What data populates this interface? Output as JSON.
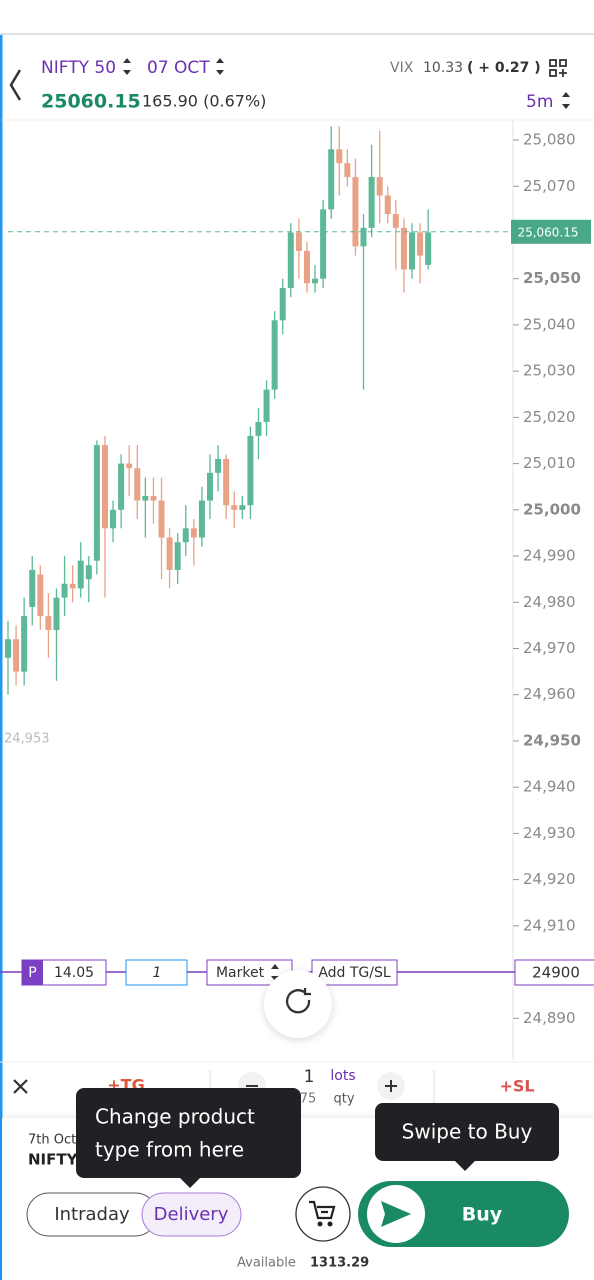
{
  "header": {
    "symbol": "NIFTY 50",
    "expiry": "07 OCT",
    "vix_label": "VIX",
    "vix_value": "10.33",
    "vix_change": "( + 0.27 )",
    "price": "25060.15",
    "change": "165.90 (0.67%)",
    "interval": "5m"
  },
  "chart": {
    "type": "candlestick",
    "up_color": "#5cb896",
    "down_color": "#e9a286",
    "ylim": [
      24880,
      25086
    ],
    "yticks": [
      {
        "value": 25080,
        "label": "25,080"
      },
      {
        "value": 25070,
        "label": "25,070"
      },
      {
        "value": 25060,
        "label": "25,060"
      },
      {
        "value": 25050,
        "label": "25,050"
      },
      {
        "value": 25040,
        "label": "25,040"
      },
      {
        "value": 25030,
        "label": "25,030"
      },
      {
        "value": 25020,
        "label": "25,020"
      },
      {
        "value": 25010,
        "label": "25,010"
      },
      {
        "value": 25000,
        "label": "25,000"
      },
      {
        "value": 24990,
        "label": "24,990"
      },
      {
        "value": 24980,
        "label": "24,980"
      },
      {
        "value": 24970,
        "label": "24,970"
      },
      {
        "value": 24960,
        "label": "24,960"
      },
      {
        "value": 24950,
        "label": "24,950"
      },
      {
        "value": 24940,
        "label": "24,940"
      },
      {
        "value": 24930,
        "label": "24,930"
      },
      {
        "value": 24920,
        "label": "24,920"
      },
      {
        "value": 24910,
        "label": "24,910"
      },
      {
        "value": 24890,
        "label": "24,890"
      }
    ],
    "last_price": {
      "value": 25060.15,
      "label": "25,060.15"
    },
    "low_marker": {
      "value": 24953,
      "label": "24,953"
    },
    "candles": [
      {
        "open": 24968,
        "high": 24976,
        "low": 24960,
        "close": 24972
      },
      {
        "open": 24972,
        "high": 24975,
        "low": 24962,
        "close": 24965
      },
      {
        "open": 24965,
        "high": 24981,
        "low": 24962,
        "close": 24977
      },
      {
        "open": 24979,
        "high": 24990,
        "low": 24975,
        "close": 24987
      },
      {
        "open": 24986,
        "high": 24988,
        "low": 24974,
        "close": 24977
      },
      {
        "open": 24977,
        "high": 24982,
        "low": 24968,
        "close": 24974
      },
      {
        "open": 24974,
        "high": 24983,
        "low": 24963,
        "close": 24981
      },
      {
        "open": 24981,
        "high": 24990,
        "low": 24977,
        "close": 24984
      },
      {
        "open": 24984,
        "high": 24988,
        "low": 24980,
        "close": 24983
      },
      {
        "open": 24983,
        "high": 24993,
        "low": 24981,
        "close": 24989
      },
      {
        "open": 24985,
        "high": 24990,
        "low": 24980,
        "close": 24988
      },
      {
        "open": 24989,
        "high": 25015,
        "low": 24986,
        "close": 25014
      },
      {
        "open": 25014,
        "high": 25016,
        "low": 24981,
        "close": 24996
      },
      {
        "open": 24996,
        "high": 25002,
        "low": 24993,
        "close": 25000
      },
      {
        "open": 25000,
        "high": 25012,
        "low": 24996,
        "close": 25010
      },
      {
        "open": 25010,
        "high": 25014,
        "low": 25003,
        "close": 25009
      },
      {
        "open": 25009,
        "high": 25014,
        "low": 24998,
        "close": 25002
      },
      {
        "open": 25002,
        "high": 25007,
        "low": 24994,
        "close": 25003
      },
      {
        "open": 25003,
        "high": 25007,
        "low": 24997,
        "close": 25002
      },
      {
        "open": 25002,
        "high": 25007,
        "low": 24985,
        "close": 24994
      },
      {
        "open": 24994,
        "high": 24996,
        "low": 24983,
        "close": 24987
      },
      {
        "open": 24987,
        "high": 24995,
        "low": 24984,
        "close": 24993
      },
      {
        "open": 24993,
        "high": 25001,
        "low": 24990,
        "close": 24996
      },
      {
        "open": 24996,
        "high": 24998,
        "low": 24988,
        "close": 24994
      },
      {
        "open": 24994,
        "high": 25005,
        "low": 24992,
        "close": 25002
      },
      {
        "open": 25002,
        "high": 25012,
        "low": 24998,
        "close": 25008
      },
      {
        "open": 25008,
        "high": 25014,
        "low": 25004,
        "close": 25011
      },
      {
        "open": 25011,
        "high": 25012,
        "low": 24998,
        "close": 25001
      },
      {
        "open": 25001,
        "high": 25004,
        "low": 24996,
        "close": 25000
      },
      {
        "open": 25000,
        "high": 25003,
        "low": 24998,
        "close": 25001
      },
      {
        "open": 25001,
        "high": 25018,
        "low": 24998,
        "close": 25016
      },
      {
        "open": 25016,
        "high": 25022,
        "low": 25011,
        "close": 25019
      },
      {
        "open": 25019,
        "high": 25028,
        "low": 25016,
        "close": 25026
      },
      {
        "open": 25026,
        "high": 25043,
        "low": 25024,
        "close": 25041
      },
      {
        "open": 25041,
        "high": 25050,
        "low": 25038,
        "close": 25048
      },
      {
        "open": 25048,
        "high": 25062,
        "low": 25046,
        "close": 25060
      },
      {
        "open": 25060,
        "high": 25063,
        "low": 25050,
        "close": 25056
      },
      {
        "open": 25056,
        "high": 25058,
        "low": 25047,
        "close": 25049
      },
      {
        "open": 25049,
        "high": 25053,
        "low": 25047,
        "close": 25050
      },
      {
        "open": 25050,
        "high": 25067,
        "low": 25048,
        "close": 25065
      },
      {
        "open": 25065,
        "high": 25083,
        "low": 25063,
        "close": 25078
      },
      {
        "open": 25078,
        "high": 25083,
        "low": 25068,
        "close": 25075
      },
      {
        "open": 25075,
        "high": 25078,
        "low": 25070,
        "close": 25072
      },
      {
        "open": 25072,
        "high": 25076,
        "low": 25055,
        "close": 25057
      },
      {
        "open": 25057,
        "high": 25064,
        "low": 25026,
        "close": 25061
      },
      {
        "open": 25061,
        "high": 25079,
        "low": 25059,
        "close": 25072
      },
      {
        "open": 25072,
        "high": 25082,
        "low": 25062,
        "close": 25068
      },
      {
        "open": 25068,
        "high": 25070,
        "low": 25062,
        "close": 25064
      },
      {
        "open": 25064,
        "high": 25067,
        "low": 25052,
        "close": 25061
      },
      {
        "open": 25061,
        "high": 25063,
        "low": 25047,
        "close": 25052
      },
      {
        "open": 25052,
        "high": 25062,
        "low": 25050,
        "close": 25060
      },
      {
        "open": 25060,
        "high": 25062,
        "low": 25049,
        "close": 25055
      },
      {
        "open": 25053,
        "high": 25065,
        "low": 25052,
        "close": 25060
      }
    ]
  },
  "order_line": {
    "product": "P",
    "ltp": "14.05",
    "qty": "1",
    "order_type": "Market",
    "add_tgsl": "Add TG/SL",
    "price": "24900"
  },
  "toolbar": {
    "tg": "+TG",
    "lots_value": "1",
    "lots_label": "lots",
    "qty_value": "75",
    "qty_label": "qty",
    "sl": "+SL"
  },
  "panel": {
    "date": "7th Oct",
    "name": "NIFTY",
    "intraday": "Intraday",
    "delivery": "Delivery",
    "buy": "Buy",
    "available_label": "Available",
    "available_value": "1313.29"
  },
  "tooltips": {
    "product": [
      "Change product",
      "type from here"
    ],
    "swipe": "Swipe to Buy"
  }
}
